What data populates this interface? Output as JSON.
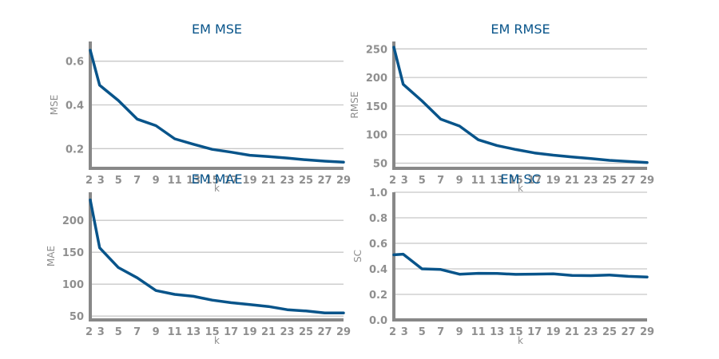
{
  "colors": {
    "series": "#08548a",
    "title": "#08548a",
    "axis": "#888888",
    "grid": "#c8c8c8",
    "tick": "#8f8f8f"
  },
  "chart_data": [
    {
      "type": "line",
      "title": "EM MSE",
      "xlabel": "k",
      "ylabel": "MSE",
      "x": [
        2,
        3,
        5,
        7,
        9,
        11,
        13,
        15,
        17,
        19,
        21,
        23,
        25,
        27,
        29
      ],
      "x_ticks": [
        2,
        3,
        5,
        7,
        9,
        11,
        13,
        15,
        17,
        19,
        21,
        23,
        25,
        27,
        29
      ],
      "y_ticks": [
        0.2,
        0.4,
        0.6
      ],
      "y_tick_labels": [
        "0.2",
        "0.4",
        "0.6"
      ],
      "ylim": [
        0.11,
        0.69
      ],
      "xlim": [
        2,
        29
      ],
      "grid": true,
      "values": [
        0.65,
        0.49,
        0.42,
        0.335,
        0.305,
        0.245,
        0.22,
        0.197,
        0.184,
        0.17,
        0.164,
        0.157,
        0.149,
        0.143,
        0.138
      ]
    },
    {
      "type": "line",
      "title": "EM RMSE",
      "xlabel": "k",
      "ylabel": "RMSE",
      "x": [
        2,
        3,
        5,
        7,
        9,
        11,
        13,
        15,
        17,
        19,
        21,
        23,
        25,
        27,
        29
      ],
      "x_ticks": [
        2,
        3,
        5,
        7,
        9,
        11,
        13,
        15,
        17,
        19,
        21,
        23,
        25,
        27,
        29
      ],
      "y_ticks": [
        50,
        100,
        150,
        200,
        250
      ],
      "y_tick_labels": [
        "50",
        "100",
        "150",
        "200",
        "250"
      ],
      "ylim": [
        41,
        263
      ],
      "xlim": [
        2,
        29
      ],
      "grid": true,
      "values": [
        253,
        188,
        159,
        127,
        115,
        91,
        81,
        74,
        68,
        64,
        61,
        58,
        55,
        53,
        51
      ]
    },
    {
      "type": "line",
      "title": "EM MAE",
      "xlabel": "k",
      "ylabel": "MAE",
      "x": [
        2,
        3,
        5,
        7,
        9,
        11,
        13,
        15,
        17,
        19,
        21,
        23,
        25,
        27,
        29
      ],
      "x_ticks": [
        2,
        3,
        5,
        7,
        9,
        11,
        13,
        15,
        17,
        19,
        21,
        23,
        25,
        27,
        29
      ],
      "y_ticks": [
        50,
        100,
        150,
        200
      ],
      "y_tick_labels": [
        "50",
        "100",
        "150",
        "200"
      ],
      "ylim": [
        44,
        244
      ],
      "xlim": [
        2,
        29
      ],
      "grid": true,
      "values": [
        232,
        157,
        126,
        110,
        90,
        84,
        81,
        75,
        71,
        68,
        65,
        60,
        58,
        55,
        55
      ]
    },
    {
      "type": "line",
      "title": "EM SC",
      "xlabel": "k",
      "ylabel": "SC",
      "x": [
        2,
        3,
        5,
        7,
        9,
        11,
        13,
        15,
        17,
        19,
        21,
        23,
        25,
        27,
        29
      ],
      "x_ticks": [
        2,
        3,
        5,
        7,
        9,
        11,
        13,
        15,
        17,
        19,
        21,
        23,
        25,
        27,
        29
      ],
      "y_ticks": [
        0.0,
        0.2,
        0.4,
        0.6,
        0.8,
        1.0
      ],
      "y_tick_labels": [
        "0.0",
        "0.2",
        "0.4",
        "0.6",
        "0.8",
        "1.0"
      ],
      "ylim": [
        0.0,
        1.0
      ],
      "xlim": [
        2,
        29
      ],
      "grid": true,
      "values": [
        0.51,
        0.515,
        0.4,
        0.395,
        0.358,
        0.365,
        0.364,
        0.357,
        0.359,
        0.361,
        0.348,
        0.347,
        0.352,
        0.341,
        0.336
      ]
    }
  ]
}
